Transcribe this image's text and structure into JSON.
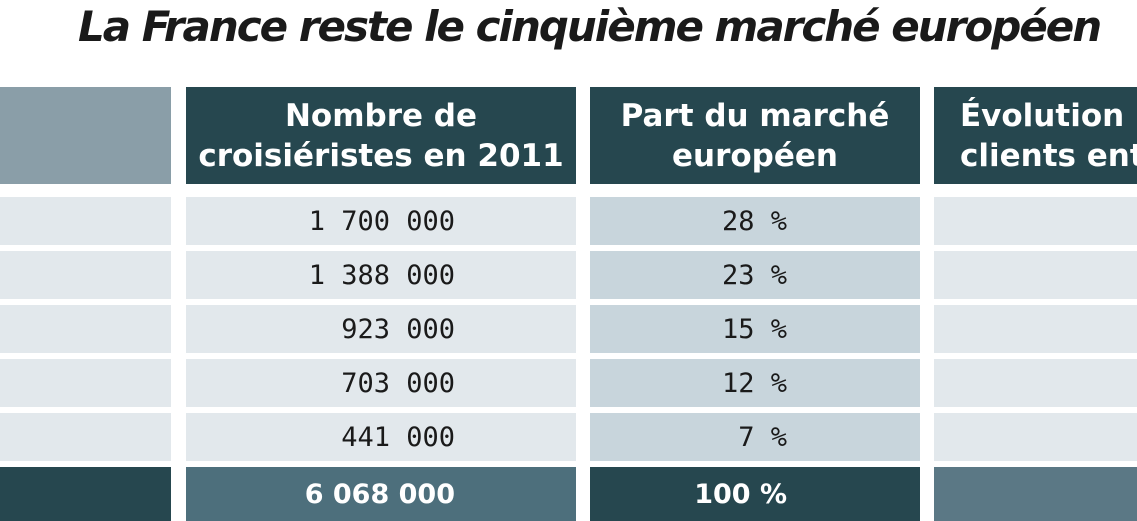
{
  "title": "La France reste le cinquième marché européen",
  "colors": {
    "header_dark": "#26474f",
    "header_corner": "#8a9ea8",
    "col1_row": "#e2e8ec",
    "col2_row": "#c8d5dc",
    "col0_row": "#e2e8ec",
    "total_label": "#26474f",
    "total_col1": "#4d6f7c",
    "total_col2": "#26474f",
    "total_col3": "#5b7885"
  },
  "chart_data": {
    "type": "table",
    "title": "La France reste le cinquième marché européen",
    "columns": [
      "",
      "Nombre de croisiéristes en 2011",
      "Part du marché européen",
      "Évolution clients ent"
    ],
    "header_lines": [
      [],
      [
        "Nombre de",
        "croisiéristes en 2011"
      ],
      [
        "Part du marché",
        "européen"
      ],
      [
        "Évolution",
        "clients ent"
      ]
    ],
    "rows": [
      {
        "passengers": "1 700 000",
        "share": "28 %",
        "value": 1700000,
        "share_pct": 28
      },
      {
        "passengers": "1 388 000",
        "share": "23 %",
        "value": 1388000,
        "share_pct": 23
      },
      {
        "passengers": "923 000",
        "share": "15 %",
        "value": 923000,
        "share_pct": 15
      },
      {
        "passengers": "703 000",
        "share": "12 %",
        "value": 703000,
        "share_pct": 12
      },
      {
        "passengers": "441 000",
        "share": "7 %",
        "value": 441000,
        "share_pct": 7
      }
    ],
    "total": {
      "passengers": "6 068 000",
      "share": "100 %",
      "value": 6068000,
      "share_pct": 100
    }
  }
}
